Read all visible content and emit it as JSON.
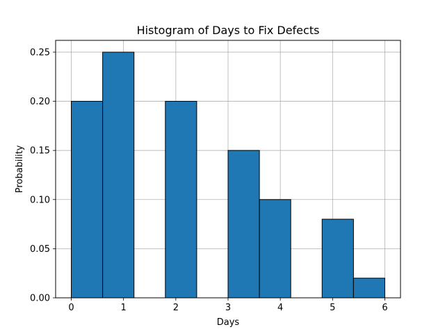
{
  "chart_data": {
    "type": "bar",
    "title": "Histogram of Days to Fix Defects",
    "xlabel": "Days",
    "ylabel": "Probability",
    "xlim": [
      -0.3,
      6.3
    ],
    "ylim": [
      0,
      0.262
    ],
    "bin_width": 0.6,
    "bins": [
      {
        "start": 0.0,
        "end": 0.6,
        "value": 0.2
      },
      {
        "start": 0.6,
        "end": 1.2,
        "value": 0.25
      },
      {
        "start": 1.2,
        "end": 1.8,
        "value": 0.0
      },
      {
        "start": 1.8,
        "end": 2.4,
        "value": 0.2
      },
      {
        "start": 2.4,
        "end": 3.0,
        "value": 0.0
      },
      {
        "start": 3.0,
        "end": 3.6,
        "value": 0.15
      },
      {
        "start": 3.6,
        "end": 4.2,
        "value": 0.1
      },
      {
        "start": 4.2,
        "end": 4.8,
        "value": 0.0
      },
      {
        "start": 4.8,
        "end": 5.4,
        "value": 0.08
      },
      {
        "start": 5.4,
        "end": 6.0,
        "value": 0.02
      }
    ],
    "x_ticks": [
      0,
      1,
      2,
      3,
      4,
      5,
      6
    ],
    "x_tick_labels": [
      "0",
      "1",
      "2",
      "3",
      "4",
      "5",
      "6"
    ],
    "y_ticks": [
      0.0,
      0.05,
      0.1,
      0.15,
      0.2,
      0.25
    ],
    "y_tick_labels": [
      "0.00",
      "0.05",
      "0.10",
      "0.15",
      "0.20",
      "0.25"
    ],
    "grid": true,
    "bar_color": "#1f77b4",
    "edge_color": "#000000",
    "grid_color": "#b0b0b0"
  }
}
